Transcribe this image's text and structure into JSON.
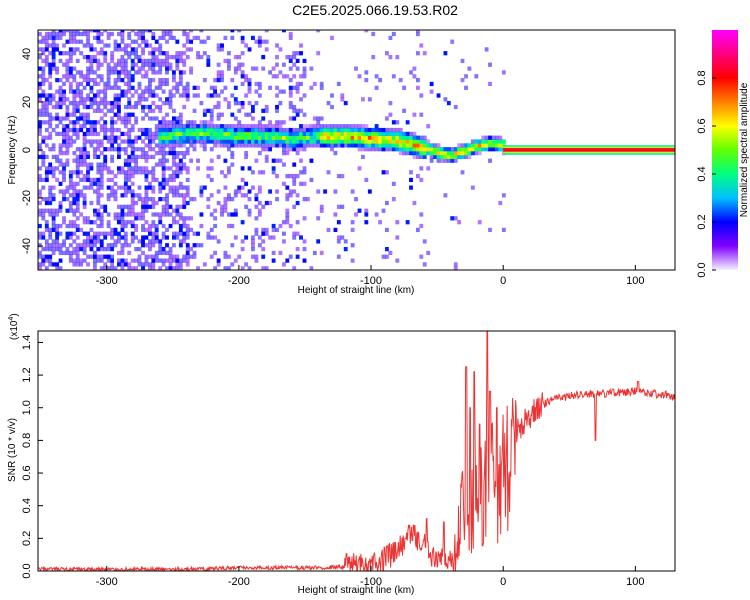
{
  "title": "C2E5.2025.066.19.53.R02",
  "chart_data": [
    {
      "type": "heatmap",
      "xlabel": "Height of straight line (km)",
      "ylabel": "Frequency (Hz)",
      "xlim": [
        -352,
        130
      ],
      "ylim": [
        -50,
        50
      ],
      "xticks": [
        -300,
        -200,
        -100,
        0,
        100
      ],
      "yticks": [
        -40,
        -20,
        0,
        20,
        40
      ],
      "colorbar": {
        "label": "Normalized spectral amplitude",
        "range": [
          0,
          1
        ],
        "ticks": [
          0.0,
          0.2,
          0.4,
          0.6,
          0.8
        ],
        "colors": [
          "#f4f0ff",
          "#8000ff",
          "#0000ff",
          "#00c0ff",
          "#00ff80",
          "#60ff00",
          "#ffff00",
          "#ff8000",
          "#ff0000",
          "#ff0080",
          "#ff00ff"
        ]
      },
      "ridge": {
        "x": [
          -260,
          -240,
          -220,
          -200,
          -180,
          -160,
          -140,
          -120,
          -100,
          -80,
          -60,
          -50,
          -40,
          -30,
          -20,
          -10,
          0
        ],
        "y": [
          5,
          6,
          6,
          5,
          5,
          4,
          5,
          5,
          4,
          3,
          0,
          -2,
          -3,
          -1,
          1,
          2,
          1
        ]
      },
      "line": {
        "x_start": 0,
        "x_end": 130,
        "y": 0
      }
    },
    {
      "type": "line",
      "xlabel": "Height of straight line (km)",
      "ylabel": "SNR (10 * v/v)",
      "yscale_label": "(x10",
      "yscale_exp": "4",
      "xlim": [
        -352,
        130
      ],
      "ylim": [
        0,
        1.47
      ],
      "xticks": [
        -300,
        -200,
        -100,
        0,
        100
      ],
      "yticks": [
        0.0,
        0.2,
        0.4,
        0.6,
        0.8,
        1.0,
        1.2,
        1.4
      ],
      "color": "#ee3333",
      "series": [
        {
          "x": [
            -352,
            -300,
            -250,
            -220,
            -200,
            -170,
            -140,
            -120,
            -110,
            -100,
            -90,
            -80,
            -70,
            -60,
            -55,
            -50,
            -45,
            -40,
            -35,
            -30,
            -25,
            -20,
            -15,
            -10,
            -5,
            0,
            10,
            20,
            30,
            40,
            60,
            80,
            100,
            120,
            130
          ],
          "y": [
            0.01,
            0.01,
            0.01,
            0.015,
            0.02,
            0.02,
            0.02,
            0.025,
            0.04,
            0.05,
            0.08,
            0.12,
            0.22,
            0.18,
            0.08,
            0.05,
            0.07,
            0.1,
            0.2,
            0.4,
            0.5,
            0.6,
            0.62,
            0.65,
            0.7,
            0.75,
            0.85,
            0.95,
            1.02,
            1.06,
            1.08,
            1.09,
            1.1,
            1.08,
            1.07
          ]
        }
      ],
      "spikes": [
        {
          "x": -68,
          "y": 0.28
        },
        {
          "x": -58,
          "y": 0.32
        },
        {
          "x": -45,
          "y": 0.3
        },
        {
          "x": -28,
          "y": 1.25
        },
        {
          "x": -25,
          "y": 1.0
        },
        {
          "x": -22,
          "y": 1.22
        },
        {
          "x": -18,
          "y": 0.9
        },
        {
          "x": -12,
          "y": 1.47
        },
        {
          "x": -10,
          "y": 1.1
        },
        {
          "x": -5,
          "y": 1.0
        },
        {
          "x": 70,
          "y": 0.8
        },
        {
          "x": 102,
          "y": 1.16
        }
      ]
    }
  ]
}
